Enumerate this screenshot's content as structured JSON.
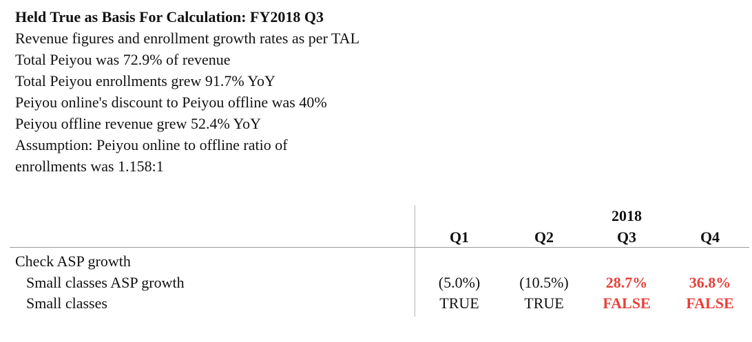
{
  "notes": {
    "title": "Held True as Basis For Calculation: FY2018 Q3",
    "lines": [
      "Revenue figures and enrollment growth rates as per TAL",
      "Total Peiyou was 72.9% of revenue",
      "Total Peiyou enrollments grew 91.7% YoY",
      "Peiyou online's discount to Peiyou offline was 40%",
      "Peiyou offline revenue grew 52.4% YoY",
      "Assumption: Peiyou online to offline ratio of",
      "enrollments was 1.158:1"
    ]
  },
  "table": {
    "year": "2018",
    "columns": [
      "Q1",
      "Q2",
      "Q3",
      "Q4"
    ],
    "section_label": "Check ASP growth",
    "rows": [
      {
        "label": "Small classes ASP growth",
        "values": [
          "(5.0%)",
          "(10.5%)",
          "28.7%",
          "36.8%"
        ]
      },
      {
        "label": "Small classes",
        "values": [
          "TRUE",
          "TRUE",
          "FALSE",
          "FALSE"
        ]
      }
    ],
    "highlight_color": "#e8403a"
  }
}
